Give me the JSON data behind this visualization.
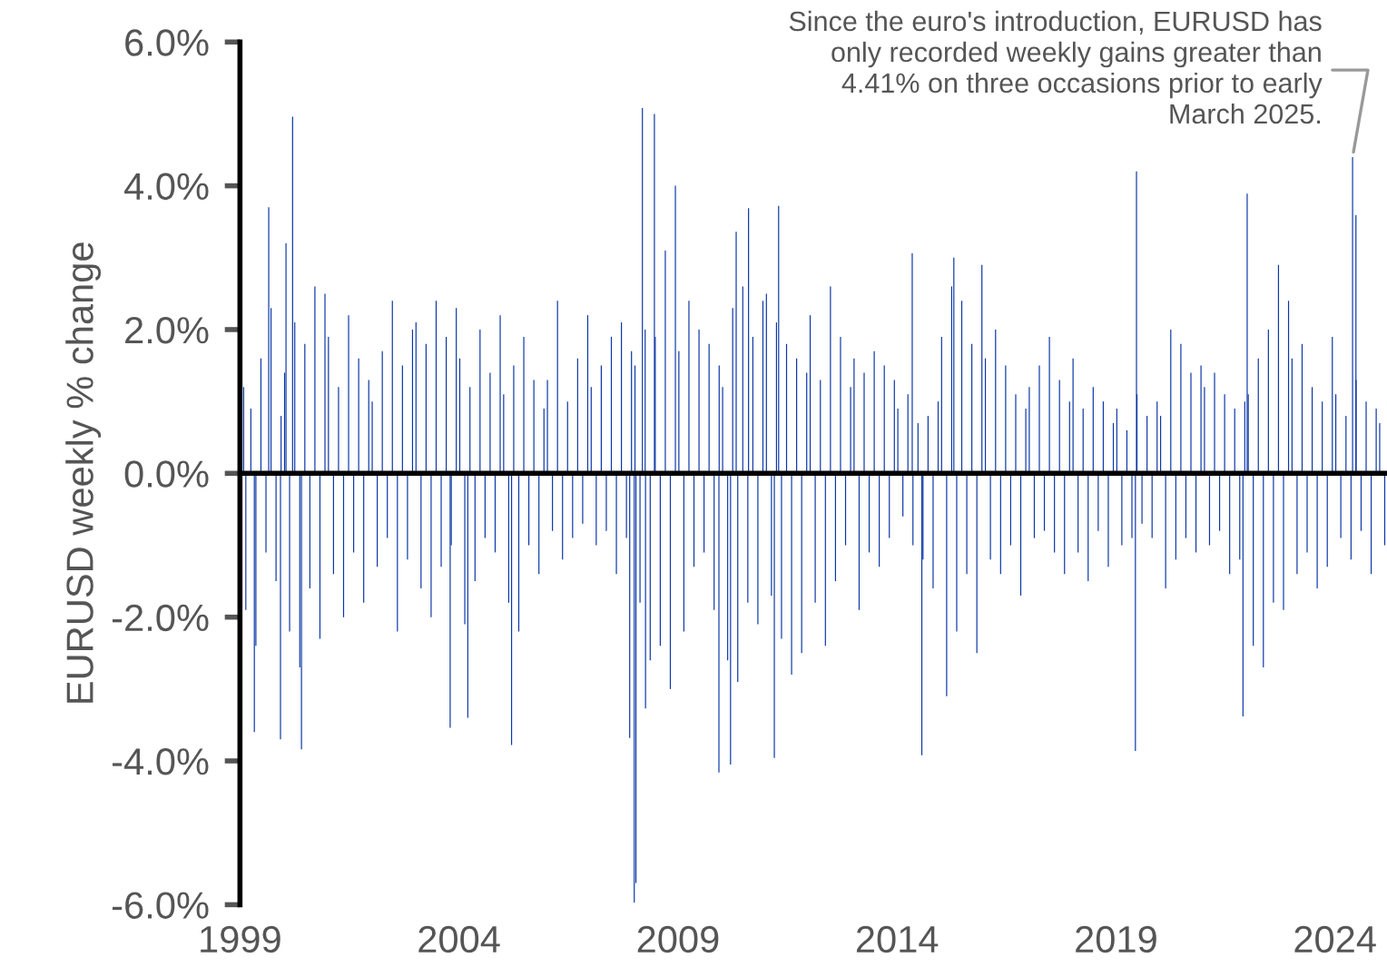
{
  "chart_data": {
    "type": "bar",
    "ylabel": "EURUSD weekly % change",
    "x": [
      "1999-02-01",
      "1999-02-19",
      "1999-04-02",
      "1999-05-01",
      "1999-05-14",
      "1999-06-25",
      "1999-08-06",
      "1999-08-29",
      "1999-09-17",
      "1999-10-29",
      "1999-12-05",
      "1999-12-10",
      "2000-01-08",
      "2000-01-20",
      "2000-02-19",
      "2000-03-15",
      "2000-04-02",
      "2000-05-14",
      "2000-05-28",
      "2000-06-25",
      "2000-08-06",
      "2000-09-17",
      "2000-10-29",
      "2000-12-10",
      "2001-01-08",
      "2001-02-19",
      "2001-04-02",
      "2001-05-14",
      "2001-06-25",
      "2001-08-06",
      "2001-09-17",
      "2001-10-29",
      "2001-12-10",
      "2002-01-08",
      "2002-02-19",
      "2002-04-02",
      "2002-05-14",
      "2002-06-25",
      "2002-08-06",
      "2002-09-17",
      "2002-10-29",
      "2002-12-10",
      "2003-01-08",
      "2003-02-19",
      "2003-04-02",
      "2003-05-14",
      "2003-06-25",
      "2003-08-06",
      "2003-09-17",
      "2003-10-20",
      "2003-10-29",
      "2003-12-10",
      "2004-01-08",
      "2004-02-19",
      "2004-03-15",
      "2004-04-02",
      "2004-05-14",
      "2004-06-25",
      "2004-08-06",
      "2004-09-17",
      "2004-10-29",
      "2004-12-10",
      "2005-01-08",
      "2005-02-19",
      "2005-03-15",
      "2005-04-02",
      "2005-05-14",
      "2005-06-25",
      "2005-08-06",
      "2005-09-17",
      "2005-10-29",
      "2005-12-10",
      "2006-01-08",
      "2006-02-19",
      "2006-04-02",
      "2006-05-14",
      "2006-06-25",
      "2006-08-06",
      "2006-09-17",
      "2006-10-29",
      "2006-12-10",
      "2007-01-08",
      "2007-02-19",
      "2007-04-02",
      "2007-05-14",
      "2007-06-25",
      "2007-08-06",
      "2007-09-17",
      "2007-10-29",
      "2007-11-25",
      "2007-12-10",
      "2008-01-02",
      "2008-01-08",
      "2008-01-16",
      "2008-02-19",
      "2008-03-10",
      "2008-04-02",
      "2008-04-05",
      "2008-05-14",
      "2008-06-18",
      "2008-06-25",
      "2008-08-06",
      "2008-09-17",
      "2008-10-29",
      "2008-12-10",
      "2009-01-08",
      "2009-02-19",
      "2009-04-02",
      "2009-05-14",
      "2009-06-25",
      "2009-08-06",
      "2009-09-17",
      "2009-10-29",
      "2009-12-08",
      "2009-12-10",
      "2010-01-08",
      "2010-02-19",
      "2010-03-15",
      "2010-04-02",
      "2010-05-01",
      "2010-05-14",
      "2010-06-25",
      "2010-08-06",
      "2010-08-12",
      "2010-09-17",
      "2010-10-29",
      "2010-12-10",
      "2011-01-08",
      "2011-02-19",
      "2011-03-15",
      "2011-04-02",
      "2011-04-20",
      "2011-05-14",
      "2011-06-25",
      "2011-08-06",
      "2011-09-17",
      "2011-10-29",
      "2011-12-10",
      "2012-01-08",
      "2012-02-19",
      "2012-04-02",
      "2012-05-14",
      "2012-06-25",
      "2012-08-06",
      "2012-09-17",
      "2012-10-29",
      "2012-12-10",
      "2013-01-08",
      "2013-02-19",
      "2013-04-02",
      "2013-05-14",
      "2013-06-25",
      "2013-08-06",
      "2013-09-17",
      "2013-10-29",
      "2013-12-10",
      "2014-01-08",
      "2014-02-19",
      "2014-04-02",
      "2014-05-08",
      "2014-05-14",
      "2014-06-25",
      "2014-07-27",
      "2014-08-06",
      "2014-09-17",
      "2014-10-29",
      "2014-12-10",
      "2015-01-08",
      "2015-02-19",
      "2015-04-02",
      "2015-04-20",
      "2015-05-14",
      "2015-06-25",
      "2015-08-06",
      "2015-09-17",
      "2015-10-29",
      "2015-12-10",
      "2016-01-08",
      "2016-02-19",
      "2016-04-02",
      "2016-05-14",
      "2016-06-25",
      "2016-08-06",
      "2016-09-17",
      "2016-10-29",
      "2016-12-10",
      "2017-01-08",
      "2017-02-19",
      "2017-04-02",
      "2017-05-14",
      "2017-06-25",
      "2017-08-06",
      "2017-09-17",
      "2017-10-29",
      "2017-12-10",
      "2018-01-08",
      "2018-02-19",
      "2018-04-02",
      "2018-05-14",
      "2018-06-25",
      "2018-08-06",
      "2018-09-17",
      "2018-10-29",
      "2018-12-10",
      "2019-01-08",
      "2019-02-19",
      "2019-04-02",
      "2019-05-14",
      "2019-06-12",
      "2019-06-21",
      "2019-06-25",
      "2019-08-06",
      "2019-09-17",
      "2019-10-29",
      "2019-12-10",
      "2020-01-08",
      "2020-02-19",
      "2020-04-02",
      "2020-05-14",
      "2020-06-25",
      "2020-08-06",
      "2020-09-17",
      "2020-10-29",
      "2020-12-10",
      "2021-01-08",
      "2021-02-19",
      "2021-04-02",
      "2021-05-14",
      "2021-06-25",
      "2021-08-06",
      "2021-09-17",
      "2021-10-29",
      "2021-11-25",
      "2021-12-10",
      "2021-12-30",
      "2022-01-08",
      "2022-02-19",
      "2022-04-02",
      "2022-05-14",
      "2022-06-25",
      "2022-08-06",
      "2022-09-17",
      "2022-10-29",
      "2022-12-10",
      "2023-01-08",
      "2023-02-19",
      "2023-04-02",
      "2023-05-14",
      "2023-06-25",
      "2023-08-06",
      "2023-09-17",
      "2023-10-29",
      "2023-12-10",
      "2024-01-08",
      "2024-02-19",
      "2024-04-02",
      "2024-05-14",
      "2024-05-27",
      "2024-06-24",
      "2024-06-25",
      "2024-08-06",
      "2024-09-17",
      "2024-10-29",
      "2024-12-10",
      "2025-01-08",
      "2025-02-19"
    ],
    "values": [
      1.2,
      -1.9,
      0.9,
      -3.6,
      -2.4,
      1.6,
      -1.1,
      3.7,
      2.3,
      -1.5,
      -3.7,
      0.8,
      1.4,
      3.2,
      -2.2,
      4.96,
      2.1,
      -2.7,
      -3.84,
      1.8,
      -1.6,
      2.6,
      -2.3,
      2.5,
      1.9,
      -1.4,
      1.2,
      -2.0,
      2.2,
      -1.1,
      1.6,
      -1.8,
      1.3,
      1.0,
      -1.3,
      1.7,
      -0.9,
      2.4,
      -2.2,
      1.5,
      -1.2,
      2.0,
      2.1,
      -1.6,
      1.8,
      -2.0,
      2.4,
      -1.3,
      1.9,
      -3.54,
      -1.0,
      2.3,
      1.6,
      -2.1,
      -3.4,
      1.2,
      -1.5,
      2.0,
      -0.9,
      1.4,
      -1.1,
      2.2,
      1.1,
      -1.8,
      -3.78,
      1.5,
      -2.2,
      1.9,
      -1.0,
      1.3,
      -1.4,
      0.9,
      1.3,
      -0.8,
      2.4,
      -1.2,
      1.0,
      -0.9,
      1.6,
      -0.7,
      2.2,
      1.2,
      -1.0,
      1.5,
      -0.8,
      1.9,
      -1.4,
      2.1,
      -0.9,
      -3.68,
      1.7,
      -5.97,
      1.5,
      -5.7,
      -1.8,
      5.08,
      2.0,
      -3.27,
      -2.6,
      5.0,
      1.9,
      -2.4,
      3.1,
      -3.0,
      4.0,
      1.7,
      -2.2,
      2.4,
      -1.3,
      2.0,
      -1.1,
      1.8,
      -1.9,
      -4.16,
      1.5,
      1.2,
      -2.6,
      -4.05,
      2.3,
      3.36,
      -2.9,
      2.6,
      -1.8,
      3.69,
      1.9,
      -2.1,
      2.4,
      2.5,
      -1.7,
      -3.96,
      2.1,
      3.72,
      -2.3,
      1.8,
      -2.8,
      1.6,
      -2.5,
      1.4,
      2.2,
      -1.8,
      1.3,
      -2.4,
      2.6,
      -1.5,
      1.9,
      -1.0,
      1.2,
      1.6,
      -1.9,
      1.4,
      -1.1,
      1.7,
      -1.3,
      1.5,
      -0.9,
      1.3,
      0.9,
      -0.6,
      1.1,
      3.06,
      -1.0,
      0.7,
      -3.92,
      -1.2,
      0.8,
      -1.6,
      1.0,
      1.9,
      -3.1,
      2.6,
      3.0,
      -2.2,
      2.4,
      -1.4,
      1.8,
      -2.5,
      2.9,
      1.6,
      -1.2,
      2.0,
      -1.4,
      1.5,
      -1.0,
      1.1,
      -1.7,
      0.9,
      1.2,
      -0.9,
      1.5,
      -0.8,
      1.9,
      -1.1,
      1.3,
      -1.4,
      1.0,
      1.6,
      -1.1,
      0.9,
      -1.5,
      1.2,
      -0.8,
      1.0,
      -1.3,
      0.7,
      0.9,
      -1.0,
      0.6,
      -0.9,
      -3.86,
      4.2,
      1.1,
      -0.7,
      0.8,
      -0.9,
      1.0,
      0.8,
      -1.6,
      2.0,
      -1.2,
      1.8,
      -0.9,
      1.4,
      -1.1,
      1.5,
      1.2,
      -1.0,
      1.4,
      -0.8,
      1.1,
      -1.4,
      0.9,
      -1.2,
      -3.38,
      1.0,
      3.89,
      1.1,
      -2.4,
      1.6,
      -2.7,
      2.0,
      -1.8,
      2.9,
      -1.9,
      2.4,
      1.6,
      -1.4,
      1.8,
      -1.1,
      1.2,
      -1.6,
      1.0,
      -1.3,
      1.9,
      1.1,
      -0.9,
      0.8,
      -1.2,
      4.4,
      3.59,
      1.3,
      -0.8,
      1.0,
      -1.4,
      0.9,
      0.7,
      -1.0
    ],
    "color": "#0a36a6",
    "xlim": [
      "1999-01-01",
      "2025-03-10"
    ],
    "xticks": [
      {
        "value": "1999-01-01",
        "label": "1999"
      },
      {
        "value": "2004-01-01",
        "label": "2004"
      },
      {
        "value": "2009-01-01",
        "label": "2009"
      },
      {
        "value": "2014-01-01",
        "label": "2014"
      },
      {
        "value": "2019-01-01",
        "label": "2019"
      },
      {
        "value": "2024-01-01",
        "label": "2024"
      }
    ],
    "ylim": [
      -6,
      6
    ],
    "yticks": [
      {
        "value": -6,
        "label": "-6.0%"
      },
      {
        "value": -4,
        "label": "-4.0%"
      },
      {
        "value": -2,
        "label": "-2.0%"
      },
      {
        "value": 0,
        "label": "0.0%"
      },
      {
        "value": 2,
        "label": "2.0%"
      },
      {
        "value": 4,
        "label": "4.0%"
      },
      {
        "value": 6,
        "label": "6.0%"
      }
    ],
    "ref_lines": [
      {
        "axis": "y",
        "value": 0,
        "color": "#000000"
      }
    ],
    "annotations": [
      {
        "text": "Since the euro's introduction, EURUSD has\nonly recorded weekly gains greater than\n4.41% on three occasions prior to early\nMarch 2025.",
        "x": "2024-05-27",
        "y": 4.4
      }
    ],
    "grid": false,
    "legend": false
  }
}
